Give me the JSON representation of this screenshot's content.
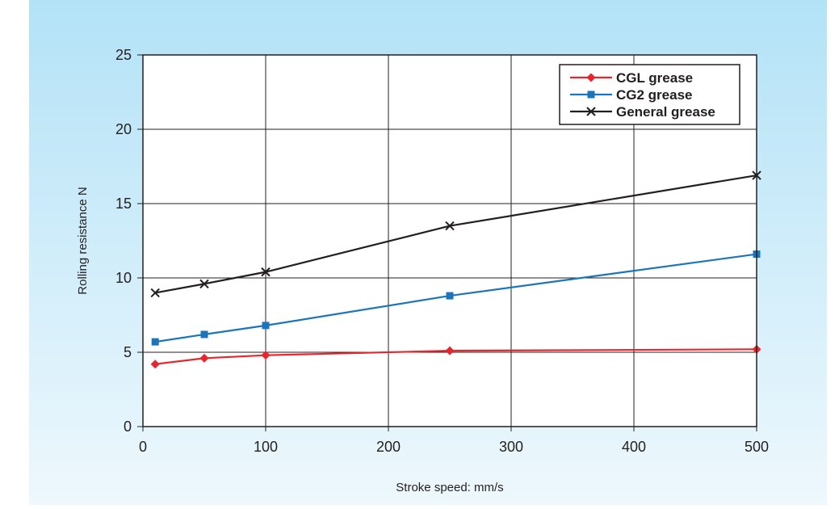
{
  "chart_data": {
    "type": "line",
    "title": "",
    "xlabel": "Stroke speed: mm/s",
    "ylabel": "Rolling resistance N",
    "x_ticks": [
      "0",
      "100",
      "200",
      "300",
      "400",
      "500"
    ],
    "y_ticks": [
      "0",
      "5",
      "10",
      "15",
      "20",
      "25"
    ],
    "xlim": [
      0,
      500
    ],
    "ylim": [
      0,
      25
    ],
    "grid": true,
    "legend_position": "top-right",
    "series": [
      {
        "name": "CGL grease",
        "color": "#e8242c",
        "marker": "diamond",
        "x": [
          10,
          50,
          100,
          250,
          500
        ],
        "y": [
          4.2,
          4.6,
          4.8,
          5.1,
          5.2
        ]
      },
      {
        "name": "CG2 grease",
        "color": "#1b75bb",
        "marker": "square",
        "x": [
          10,
          50,
          100,
          250,
          500
        ],
        "y": [
          5.7,
          6.2,
          6.8,
          8.8,
          11.6
        ]
      },
      {
        "name": "General grease",
        "color": "#231f20",
        "marker": "cross",
        "x": [
          10,
          50,
          100,
          250,
          500
        ],
        "y": [
          9.0,
          9.6,
          10.4,
          13.5,
          16.9
        ]
      }
    ]
  },
  "colors": {
    "background_top": "#b3e2f7",
    "background_bottom": "#eef8fd",
    "plot_area": "#ffffff",
    "grid": "#231f20"
  }
}
